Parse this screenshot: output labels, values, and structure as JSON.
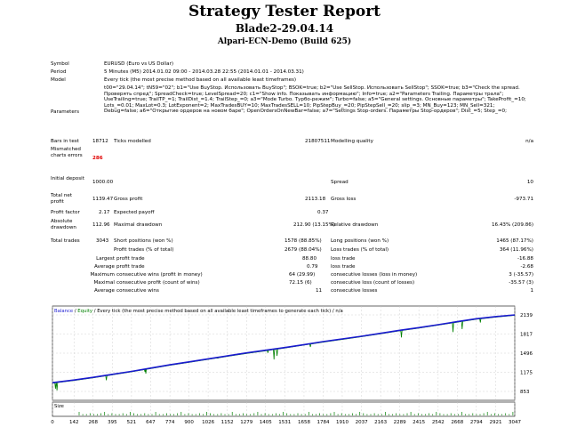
{
  "report": {
    "title": "Strategy Tester Report",
    "expert": "Blade2-29.04.14",
    "server": "Alpari-ECN-Demo (Build 625)"
  },
  "info": {
    "symbol_label": "Symbol",
    "symbol": "EURUSD (Euro vs US Dollar)",
    "period_label": "Period",
    "period": "5 Minutes (M5) 2014.01.02 09:00 - 2014.03.28 22:55 (2014.01.01 - 2014.03.31)",
    "model_label": "Model",
    "model": "Every tick (the most precise method based on all available least timeframes)",
    "parameters_label": "Parameters",
    "parameters": "t00=\"29.04.14\"; tN59=\"02\"; b1=\"Use BuyStop. Использовать BuyStop\"; BSOK=true; b2=\"Use SellStop. Использовать SellStop\"; SSOK=true; b3=\"Check the spread. Проверять спред\"; SpreadCheck=true; LevelSpread=20; c1=\"Show info. Показывать информацию\"; Info=true; a2=\"Parameters Trailing. Параметры трала\"; UseTrailing=true; TrailTP_=1; TrailDist_=1.4; TrailStep_=0; a3=\"Mode Turbo. Турбо-режим\"; Turbo=false; a5=\"General settings. Основные параметры\"; TakeProfit_=10; Lots_=0.01; MaxLot=0.3; LotExponent=2; MaxTradesBUY=10; MaxTradesSELL=10; PipStepBuy_=20; PipStepSell_=20; slip_=3; MN_Buy=123; MN_Sell=321; Debug=false; a6=\"Открытие ордеров на новом баре\"; OpenOrdersOnNewBar=false; a7=\"Settings Stop-orders. Параметры Stop-ордеров\"; Dist_=5; Step_=0;"
  },
  "stats": {
    "bars_label": "Bars in test",
    "bars": "18712",
    "ticks_label": "Ticks modelled",
    "ticks": "21807511",
    "quality_label": "Modelling quality",
    "quality": "n/a",
    "mismatch_label": "Mismatched charts errors",
    "mismatch": "286",
    "deposit_label": "Initial deposit",
    "deposit": "1000.00",
    "spread_label": "Spread",
    "spread": "10",
    "net_label": "Total net profit",
    "net": "1139.47",
    "gross_profit_label": "Gross profit",
    "gross_profit": "2113.18",
    "gross_loss_label": "Gross loss",
    "gross_loss": "-973.71",
    "pf_label": "Profit factor",
    "pf": "2.17",
    "payoff_label": "Expected payoff",
    "payoff": "0.37",
    "abs_dd_label": "Absolute drawdown",
    "abs_dd": "112.96",
    "max_dd_label": "Maximal drawdown",
    "max_dd": "212.90 (13.15%)",
    "rel_dd_label": "Relative drawdown",
    "rel_dd": "16.43% (209.86)",
    "total_label": "Total trades",
    "total": "3043",
    "short_label": "Short positions (won %)",
    "short": "1578 (88.85%)",
    "long_label": "Long positions (won %)",
    "long": "1465 (87.17%)",
    "ptrades_label": "Profit trades (% of total)",
    "ptrades": "2679 (88.04%)",
    "ltrades_label": "Loss trades (% of total)",
    "ltrades": "364 (11.96%)",
    "largest_label": "Largest",
    "lp_label": "profit trade",
    "lp": "88.80",
    "ll_label": "loss trade",
    "ll": "-16.88",
    "average_label": "Average",
    "ap_label": "profit trade",
    "ap": "0.79",
    "al_label": "loss trade",
    "al": "-2.68",
    "maximum_label": "Maximum",
    "mcw_label": "consecutive wins (profit in money)",
    "mcw": "64 (29.99)",
    "mcl_label": "consecutive losses (loss in money)",
    "mcl": "3 (-35.57)",
    "maximal_label": "Maximal",
    "mxw_label": "consecutive profit (count of wins)",
    "mxw": "72.15 (6)",
    "mxl_label": "consecutive loss (count of losses)",
    "mxl": "-35.57 (3)",
    "avg2_label": "Average",
    "acw_label": "consecutive wins",
    "acw": "11",
    "acl_label": "consecutive losses",
    "acl": "1"
  },
  "chart_data": {
    "type": "line",
    "legend": [
      "Balance",
      "Equity",
      "Every tick (the most precise method based on all available least timeframes to generate each tick)",
      "n/a"
    ],
    "size_label": "Size",
    "x_ticks": [
      0,
      142,
      268,
      395,
      521,
      647,
      774,
      900,
      1026,
      1152,
      1279,
      1405,
      1531,
      1658,
      1784,
      1910,
      2037,
      2163,
      2289,
      2415,
      2542,
      2668,
      2794,
      2921,
      3047
    ],
    "y_ticks": [
      853,
      1175,
      1496,
      1817,
      2139
    ],
    "ylim": [
      853,
      2139
    ],
    "xlim": [
      0,
      3047
    ],
    "series": [
      {
        "name": "Balance",
        "color": "#1a1ad0",
        "x": [
          0,
          142,
          268,
          395,
          521,
          647,
          774,
          900,
          1026,
          1152,
          1279,
          1405,
          1531,
          1658,
          1784,
          1910,
          2037,
          2163,
          2289,
          2415,
          2542,
          2668,
          2794,
          2921,
          3047
        ],
        "values": [
          1000,
          1045,
          1090,
          1140,
          1190,
          1245,
          1300,
          1350,
          1400,
          1450,
          1500,
          1545,
          1590,
          1640,
          1690,
          1735,
          1780,
          1830,
          1880,
          1925,
          1975,
          2025,
          2075,
          2110,
          2139
        ]
      },
      {
        "name": "Equity",
        "color": "#008000",
        "dips": [
          [
            20,
            900
          ],
          [
            30,
            870
          ],
          [
            355,
            1040
          ],
          [
            610,
            1180
          ],
          [
            615,
            1150
          ],
          [
            1090,
            1410
          ],
          [
            1420,
            1500
          ],
          [
            1460,
            1390
          ],
          [
            1480,
            1450
          ],
          [
            1700,
            1600
          ],
          [
            2300,
            1760
          ],
          [
            2640,
            1850
          ],
          [
            2700,
            1900
          ],
          [
            2820,
            2010
          ]
        ]
      }
    ],
    "size_values": [
      0.01,
      0.02,
      0.04
    ]
  },
  "colors": {
    "balance": "#1a1ad0",
    "equity": "#008000",
    "grid": "#c8c8c8",
    "mismatch": "#e00000"
  }
}
